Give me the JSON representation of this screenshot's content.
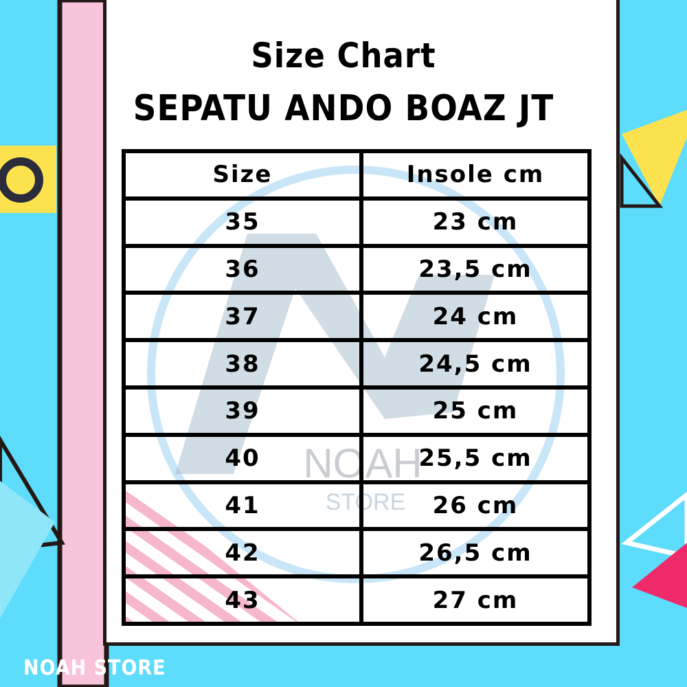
{
  "header": {
    "title": "Size Chart",
    "subtitle": "SEPATU ANDO BOAZ JT"
  },
  "table": {
    "columns": [
      "Size",
      "Insole cm"
    ],
    "rows": [
      [
        "35",
        "23 cm"
      ],
      [
        "36",
        "23,5 cm"
      ],
      [
        "37",
        "24 cm"
      ],
      [
        "38",
        "24,5 cm"
      ],
      [
        "39",
        "25 cm"
      ],
      [
        "40",
        "25,5 cm"
      ],
      [
        "41",
        "26 cm"
      ],
      [
        "42",
        "26,5 cm"
      ],
      [
        "43",
        "27 cm"
      ]
    ]
  },
  "watermark": {
    "line1": "NOAH",
    "line2": "STORE"
  },
  "footer": {
    "brand": "NOAH STORE"
  },
  "colors": {
    "background": "#5edcfb",
    "pink": "#f9c3dc",
    "yellow": "#fde24f",
    "magenta": "#ee2a6b",
    "border": "#231815"
  }
}
